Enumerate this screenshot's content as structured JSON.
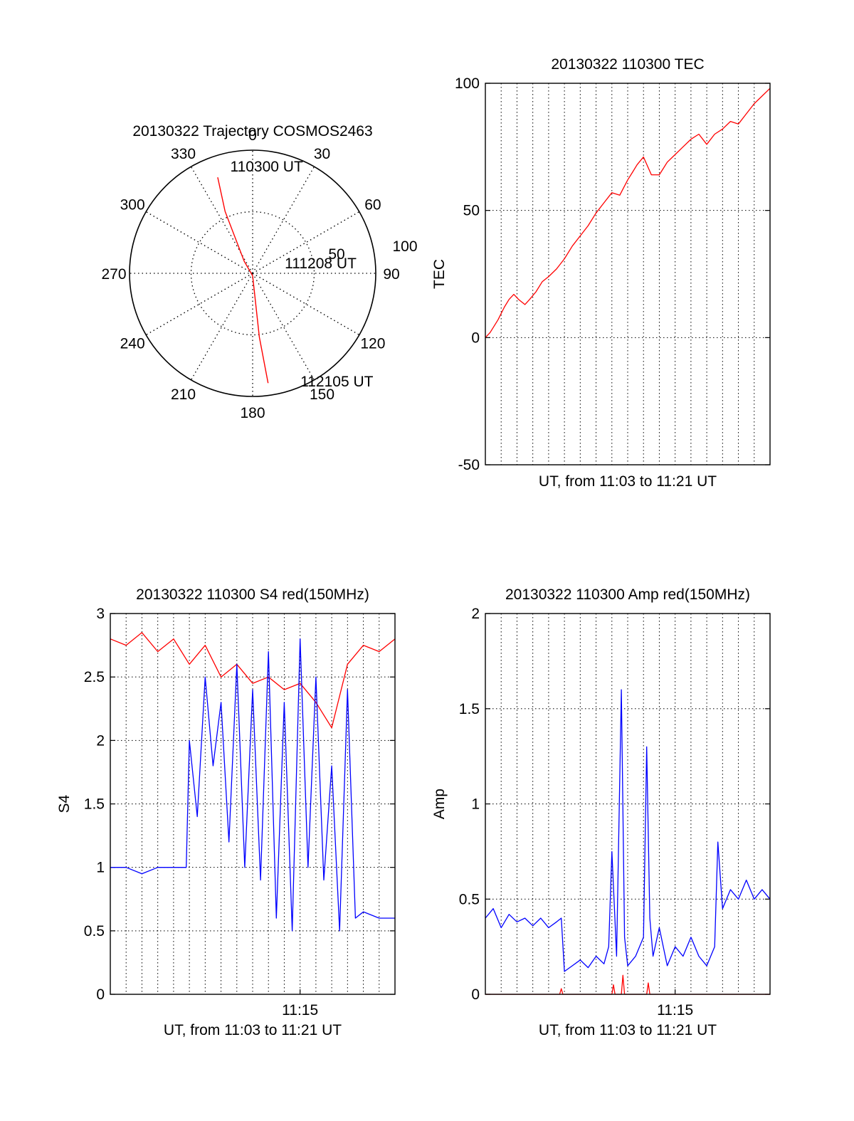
{
  "chart_data": [
    {
      "id": "trajectory",
      "type": "polar",
      "title": "20130322 Trajectory COSMOS2463",
      "angle_labels": [
        "0",
        "30",
        "60",
        "90",
        "120",
        "150",
        "180",
        "210",
        "240",
        "270",
        "300",
        "330"
      ],
      "radius_labels": [
        "50",
        "100"
      ],
      "radius_max": 100,
      "track": [
        {
          "azimuth": 340,
          "radius": 83
        },
        {
          "azimuth": 336,
          "radius": 55
        },
        {
          "azimuth": 325,
          "radius": 12
        },
        {
          "azimuth": 180,
          "radius": 2
        },
        {
          "azimuth": 174,
          "radius": 52
        },
        {
          "azimuth": 172,
          "radius": 90
        }
      ],
      "annotations": [
        {
          "text": "110300 UT",
          "azimuth": 350,
          "radius": 85
        },
        {
          "text": "111208 UT",
          "azimuth": 80,
          "radius": 30
        },
        {
          "text": "112105 UT",
          "azimuth": 155,
          "radius": 100
        }
      ],
      "colors": {
        "track": "#ff0000",
        "frame": "#000000"
      }
    },
    {
      "id": "tec",
      "type": "line",
      "title": "20130322 110300 TEC",
      "xlabel": "UT, from 11:03 to 11:21 UT",
      "ylabel": "TEC",
      "xlim": [
        0,
        18
      ],
      "ylim": [
        -50,
        100
      ],
      "yticks": [
        "-50",
        "0",
        "50",
        "100"
      ],
      "xgrid_count": 18,
      "series": [
        {
          "name": "TEC",
          "color": "#ff0000",
          "x": [
            0,
            0.3,
            0.8,
            1.2,
            1.5,
            1.8,
            2.1,
            2.5,
            2.8,
            3.2,
            3.6,
            4.0,
            4.5,
            5.0,
            5.5,
            6.0,
            6.5,
            7.0,
            7.5,
            8.0,
            8.5,
            9.0,
            9.3,
            9.6,
            10.0,
            10.5,
            11.0,
            11.2,
            11.5,
            12.0,
            12.5,
            13.0,
            13.5,
            14.0,
            14.5,
            15.0,
            15.5,
            16.0,
            16.5,
            17.0,
            17.5,
            18.0
          ],
          "y": [
            0,
            2,
            7,
            12,
            15,
            17,
            15,
            13,
            15,
            18,
            22,
            24,
            27,
            31,
            36,
            40,
            44,
            49,
            53,
            57,
            56,
            62,
            65,
            68,
            71,
            64,
            64,
            66,
            69,
            72,
            75,
            78,
            80,
            76,
            80,
            82,
            85,
            84,
            88,
            92,
            95,
            98
          ]
        }
      ]
    },
    {
      "id": "s4",
      "type": "line",
      "title": "20130322 110300 S4 red(150MHz)",
      "xlabel": "UT, from 11:03 to 11:21 UT",
      "ylabel": "S4",
      "xlim": [
        0,
        18
      ],
      "ylim": [
        0,
        3
      ],
      "yticks": [
        "0",
        "0.5",
        "1",
        "1.5",
        "2",
        "2.5",
        "3"
      ],
      "xticks": [
        {
          "x": 12,
          "label": "11:15"
        }
      ],
      "xgrid_count": 18,
      "series": [
        {
          "name": "red",
          "color": "#ff0000",
          "x": [
            0,
            1,
            2,
            3,
            4,
            5,
            6,
            7,
            8,
            9,
            10,
            11,
            12,
            13,
            14,
            15,
            16,
            17,
            18
          ],
          "y": [
            2.8,
            2.75,
            2.85,
            2.7,
            2.8,
            2.6,
            2.75,
            2.5,
            2.6,
            2.45,
            2.5,
            2.4,
            2.45,
            2.3,
            2.1,
            2.6,
            2.75,
            2.7,
            2.8
          ]
        },
        {
          "name": "blue",
          "color": "#0000ff",
          "x": [
            0,
            1,
            2,
            3,
            4,
            4.8,
            5.0,
            5.5,
            6.0,
            6.5,
            7.0,
            7.5,
            8.0,
            8.5,
            9.0,
            9.5,
            10.0,
            10.5,
            11.0,
            11.5,
            12.0,
            12.5,
            13.0,
            13.5,
            14.0,
            14.5,
            15.0,
            15.5,
            16.0,
            17.0,
            18.0
          ],
          "y": [
            1.0,
            1.0,
            0.95,
            1.0,
            1.0,
            1.0,
            2.0,
            1.4,
            2.5,
            1.8,
            2.3,
            1.2,
            2.6,
            1.0,
            2.4,
            0.9,
            2.7,
            0.6,
            2.3,
            0.5,
            2.8,
            1.0,
            2.5,
            0.9,
            1.8,
            0.5,
            2.4,
            0.6,
            0.65,
            0.6,
            0.6
          ]
        }
      ]
    },
    {
      "id": "amp",
      "type": "line",
      "title": "20130322 110300 Amp red(150MHz)",
      "xlabel": "UT, from 11:03 to 11:21 UT",
      "ylabel": "Amp",
      "xlim": [
        0,
        18
      ],
      "ylim": [
        0,
        2
      ],
      "yticks": [
        "0",
        "0.5",
        "1",
        "1.5",
        "2"
      ],
      "xticks": [
        {
          "x": 12,
          "label": "11:15"
        }
      ],
      "xgrid_count": 18,
      "series": [
        {
          "name": "blue",
          "color": "#0000ff",
          "x": [
            0,
            0.5,
            1.0,
            1.5,
            2.0,
            2.5,
            3.0,
            3.5,
            4.0,
            4.5,
            4.8,
            5.0,
            5.5,
            6.0,
            6.5,
            7.0,
            7.5,
            7.8,
            8.0,
            8.3,
            8.6,
            8.8,
            9.0,
            9.5,
            10.0,
            10.2,
            10.4,
            10.6,
            11.0,
            11.5,
            12.0,
            12.5,
            13.0,
            13.5,
            14.0,
            14.5,
            14.7,
            15.0,
            15.5,
            16.0,
            16.5,
            17.0,
            17.5,
            18.0
          ],
          "y": [
            0.4,
            0.45,
            0.35,
            0.42,
            0.38,
            0.4,
            0.36,
            0.4,
            0.35,
            0.38,
            0.4,
            0.12,
            0.15,
            0.18,
            0.14,
            0.2,
            0.16,
            0.25,
            0.75,
            0.2,
            1.6,
            0.3,
            0.15,
            0.2,
            0.3,
            1.3,
            0.4,
            0.2,
            0.35,
            0.15,
            0.25,
            0.2,
            0.3,
            0.2,
            0.15,
            0.25,
            0.8,
            0.45,
            0.55,
            0.5,
            0.6,
            0.5,
            0.55,
            0.5
          ]
        },
        {
          "name": "red",
          "color": "#ff0000",
          "x": [
            0,
            4.7,
            4.8,
            4.9,
            8.0,
            8.1,
            8.2,
            8.6,
            8.7,
            8.8,
            10.2,
            10.3,
            10.4,
            18.0
          ],
          "y": [
            0.0,
            0.0,
            0.03,
            0.0,
            0.0,
            0.05,
            0.0,
            0.0,
            0.1,
            0.0,
            0.0,
            0.06,
            0.0,
            0.0
          ]
        }
      ]
    }
  ]
}
